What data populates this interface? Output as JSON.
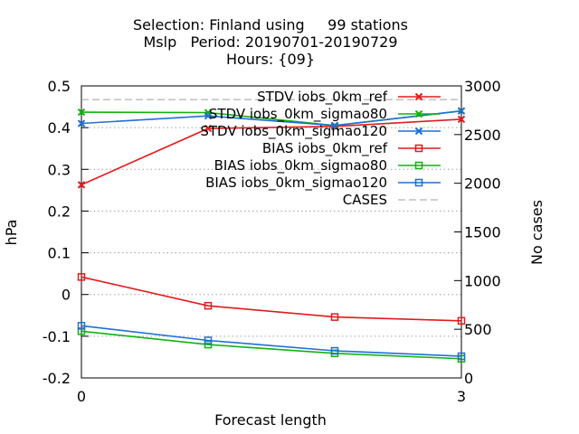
{
  "chart_data": {
    "type": "line",
    "title_lines": [
      "Selection: Finland using     99 stations",
      "Mslp   Period: 20190701-20190729",
      "Hours: {09}"
    ],
    "xlabel": "Forecast length",
    "ylabel": "hPa",
    "y2label": "No cases",
    "x": [
      0,
      1,
      2,
      3
    ],
    "xlim": [
      0,
      3
    ],
    "xticks": [
      "0",
      "3"
    ],
    "ylim": [
      -0.2,
      0.5
    ],
    "yticks": [
      "-0.2",
      "-0.1",
      "0",
      "0.1",
      "0.2",
      "0.3",
      "0.4",
      "0.5"
    ],
    "y2lim": [
      0,
      3000
    ],
    "y2ticks": [
      "0",
      "500",
      "1000",
      "1500",
      "2000",
      "2500",
      "3000"
    ],
    "grid": true,
    "legend_position": "top-right",
    "series": [
      {
        "name": "STDV iobs_0km_ref",
        "axis": "y",
        "marker": "x",
        "color": "#e41a1c",
        "values": [
          0.263,
          0.398,
          0.403,
          0.42
        ]
      },
      {
        "name": "STDV iobs_0km_sigmao80",
        "axis": "y",
        "marker": "x",
        "color": "#11b211",
        "values": [
          0.437,
          0.436,
          0.405,
          0.44
        ]
      },
      {
        "name": "STDV iobs_0km_sigmao120",
        "axis": "y",
        "marker": "x",
        "color": "#1f6fd6",
        "values": [
          0.41,
          0.428,
          0.405,
          0.44
        ]
      },
      {
        "name": "BIAS iobs_0km_ref",
        "axis": "y",
        "marker": "square",
        "color": "#e41a1c",
        "values": [
          0.042,
          -0.027,
          -0.054,
          -0.063
        ]
      },
      {
        "name": "BIAS iobs_0km_sigmao80",
        "axis": "y",
        "marker": "square",
        "color": "#11b211",
        "values": [
          -0.088,
          -0.12,
          -0.141,
          -0.154
        ]
      },
      {
        "name": "BIAS iobs_0km_sigmao120",
        "axis": "y",
        "marker": "square",
        "color": "#1f6fd6",
        "values": [
          -0.075,
          -0.11,
          -0.135,
          -0.148
        ]
      },
      {
        "name": "CASES",
        "axis": "y2",
        "marker": "none",
        "dashed": true,
        "color": "#a0a0a0",
        "values": [
          2860,
          2860,
          2860,
          2860
        ]
      }
    ]
  }
}
